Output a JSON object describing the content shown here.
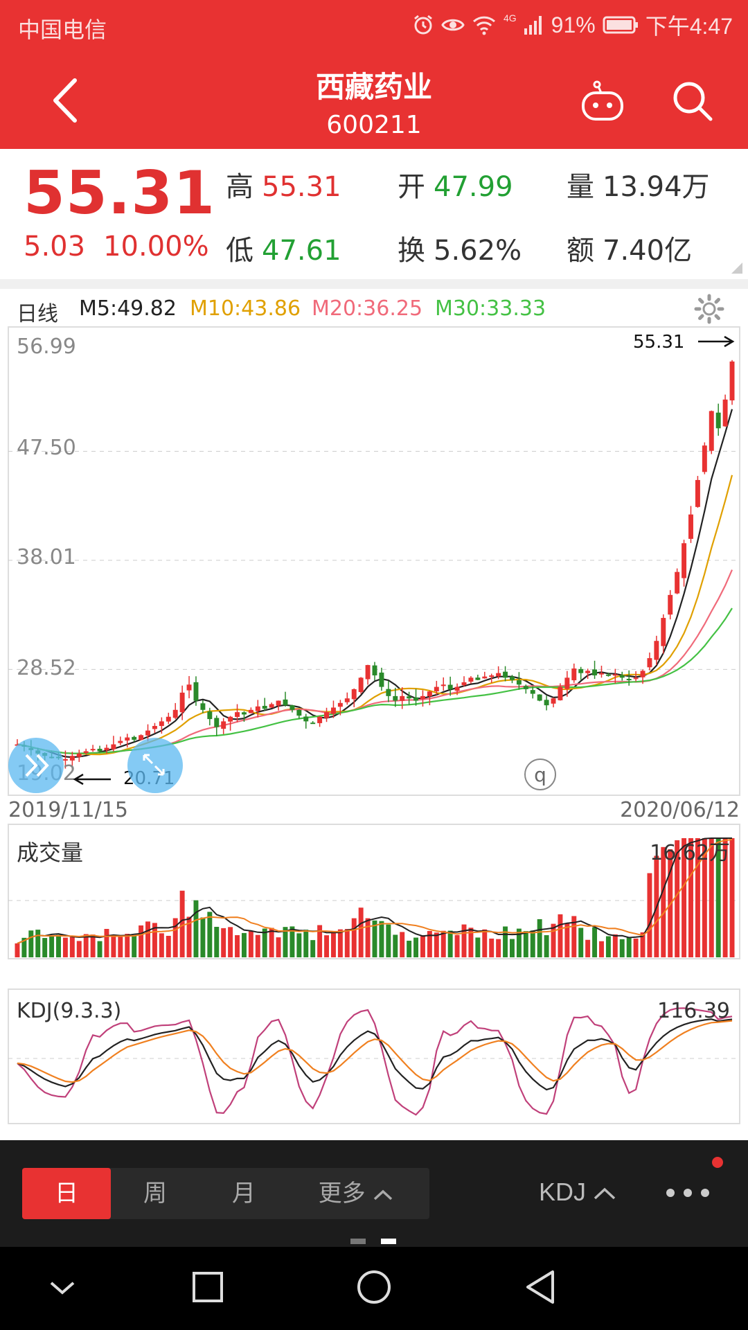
{
  "status_bar": {
    "carrier": "中国电信",
    "network": "4G",
    "battery": "91%",
    "time": "下午4:47"
  },
  "header": {
    "name": "西藏药业",
    "code": "600211"
  },
  "quote": {
    "price": "55.31",
    "change": "5.03",
    "change_pct": "10.00%",
    "high_label": "高",
    "high": "55.31",
    "open_label": "开",
    "open": "47.99",
    "volume_label": "量",
    "volume": "13.94万",
    "low_label": "低",
    "low": "47.61",
    "turnover_label": "换",
    "turnover": "5.62%",
    "amount_label": "额",
    "amount": "7.40亿"
  },
  "indicators": {
    "period": "日线",
    "m5": "M5:49.82",
    "m10": "M10:43.86",
    "m20": "M20:36.25",
    "m30": "M30:33.33",
    "colors": {
      "m5": "#222222",
      "m10": "#e0a000",
      "m20": "#f06a7a",
      "m30": "#44c144"
    }
  },
  "chart": {
    "y_ticks": [
      "56.99",
      "47.50",
      "38.01",
      "28.52"
    ],
    "y_bottom_partial": "19.02",
    "high_marker": "55.31",
    "low_marker": "20.71",
    "date_start": "2019/11/15",
    "date_end": "2020/06/12",
    "q_badge": "q"
  },
  "volume_panel": {
    "label": "成交量",
    "max": "16.62万"
  },
  "kdj_panel": {
    "label": "KDJ(9.3.3)",
    "max": "116.39"
  },
  "bottom_bar": {
    "tabs": [
      "日",
      "周",
      "月"
    ],
    "more": "更多",
    "indicator": "KDJ"
  },
  "chart_data": {
    "type": "candlestick",
    "ylim": [
      19.02,
      56.99
    ],
    "x_range": [
      "2019/11/15",
      "2020/06/12"
    ],
    "last_close": 55.31,
    "max_marker": 55.31,
    "min_marker": 20.71,
    "closes": [
      22.0,
      21.8,
      21.5,
      21.2,
      21.0,
      20.9,
      20.8,
      20.71,
      21.0,
      21.2,
      21.4,
      21.6,
      21.4,
      21.7,
      22.0,
      22.3,
      22.6,
      22.4,
      22.8,
      23.2,
      23.6,
      24.0,
      24.4,
      25.0,
      26.5,
      27.2,
      25.8,
      25.0,
      24.2,
      23.5,
      24.0,
      24.4,
      24.8,
      24.6,
      25.0,
      25.3,
      25.1,
      25.5,
      25.8,
      25.4,
      25.0,
      24.5,
      24.0,
      23.8,
      24.4,
      24.8,
      25.2,
      25.6,
      26.0,
      26.8,
      27.8,
      28.9,
      28.0,
      27.0,
      26.2,
      25.8,
      26.2,
      26.0,
      25.8,
      26.2,
      26.6,
      27.0,
      27.2,
      26.8,
      27.0,
      27.4,
      27.8,
      27.6,
      27.9,
      28.0,
      28.2,
      27.8,
      27.6,
      27.2,
      26.8,
      26.4,
      25.8,
      25.4,
      26.0,
      27.0,
      27.8,
      28.6,
      28.2,
      28.4,
      28.0,
      28.2,
      28.0,
      28.1,
      27.8,
      27.6,
      27.8,
      28.4,
      29.5,
      31.0,
      33.0,
      35.0,
      37.0,
      39.5,
      42.0,
      45.0,
      48.0,
      51.0,
      49.5,
      52.0,
      55.31
    ],
    "volume_max": "16.62万",
    "kdj_max": 116.39
  }
}
